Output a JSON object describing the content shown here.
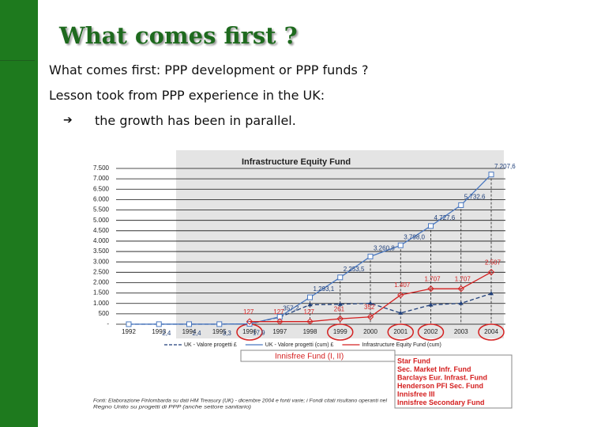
{
  "slide": {
    "title": "What comes first ?",
    "line1": "What comes first: PPP development or PPP funds ?",
    "line2": "Lesson took from PPP experience in the UK:",
    "bullet": "the growth has been in parallel."
  },
  "chart_data": {
    "type": "line",
    "title": "Infrastructure Equity Fund",
    "categories": [
      "1992",
      "1993",
      "1994",
      "1995",
      "1996",
      "1997",
      "1998",
      "1999",
      "2000",
      "2001",
      "2002",
      "2003",
      "2004"
    ],
    "ylim": [
      0,
      7500
    ],
    "yticks": [
      {
        "value": 0,
        "label": "-"
      },
      500,
      {
        "value": 1000,
        "label": "1.000"
      },
      {
        "value": 1500,
        "label": "1.500"
      },
      {
        "value": 2000,
        "label": "2.000"
      },
      {
        "value": 2500,
        "label": "2.500"
      },
      {
        "value": 3000,
        "label": "3.000"
      },
      {
        "value": 3500,
        "label": "3.500"
      },
      {
        "value": 4000,
        "label": "4.000"
      },
      {
        "value": 4500,
        "label": "4.500"
      },
      {
        "value": 5000,
        "label": "5.000"
      },
      {
        "value": 5500,
        "label": "5.500"
      },
      {
        "value": 6000,
        "label": "6.000"
      },
      {
        "value": 6500,
        "label": "6.500"
      },
      {
        "value": 7000,
        "label": "7.000"
      },
      {
        "value": 7500,
        "label": "7.500"
      }
    ],
    "grid": true,
    "series": [
      {
        "name": "UK - Valore progetti £",
        "color": "#1f3f7a",
        "dash": true,
        "values": [
          0,
          0,
          0,
          0,
          15,
          339,
          936,
          960,
          1007,
          537,
          930,
          1005,
          1475
        ]
      },
      {
        "name": "UK - Valore progetti (cum) £",
        "color": "#4a78c0",
        "values": [
          0,
          2.4,
          2.4,
          3.3,
          17.9,
          357.2,
          1293.1,
          2253.5,
          3260.8,
          3798.0,
          4727.6,
          5732.6,
          7207.6
        ],
        "value_labels": [
          null,
          "2,4",
          "2,4",
          "3,3",
          "17,9",
          "357,2",
          "1.293,1",
          "2.253,5",
          "3.260,8",
          "3.798,0",
          "4.727,6",
          "5.732,6",
          "7.207,6"
        ]
      },
      {
        "name": "Infrastructure Equity Fund (cum)",
        "color": "#d42020",
        "values": [
          null,
          null,
          null,
          null,
          127,
          127,
          127,
          261,
          352,
          1407,
          1707,
          1707,
          2507
        ],
        "value_labels": [
          null,
          null,
          null,
          null,
          "127",
          "127",
          "127",
          "261",
          "352",
          "1.407",
          "1.707",
          "1.707",
          "2.507"
        ]
      }
    ],
    "annotation": "Innisfree Fund (I, II)",
    "fund_list": [
      "Star Fund",
      "Sec. Market Infr. Fund",
      "Barclays Eur. Infrast. Fund",
      "Henderson PFI Sec. Fund",
      "Innisfree III",
      "Innisfree Secondary Fund"
    ],
    "source": [
      "Fonti: Elaborazione Finlombarda su dati HM Treasury (UK) - dicembre 2004 e fonti varie; i Fondi citati risultano operanti nel",
      "Regno Unito su progetti di PPP (anche settore sanitario)"
    ]
  }
}
